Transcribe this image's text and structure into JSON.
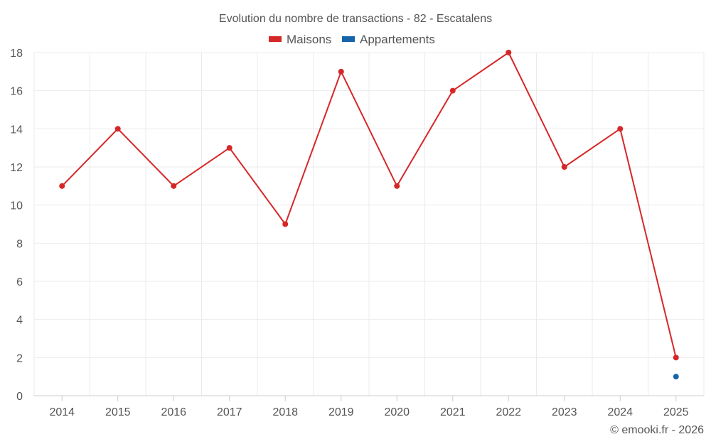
{
  "chart_data": {
    "type": "line",
    "title": "Evolution du nombre de transactions - 82 - Escatalens",
    "categories": [
      "2014",
      "2015",
      "2016",
      "2017",
      "2018",
      "2019",
      "2020",
      "2021",
      "2022",
      "2023",
      "2024",
      "2025"
    ],
    "series": [
      {
        "name": "Maisons",
        "color": "#d62728",
        "values": [
          11,
          14,
          11,
          13,
          9,
          17,
          11,
          16,
          18,
          12,
          14,
          2
        ]
      },
      {
        "name": "Appartements",
        "color": "#1565a8",
        "values": [
          null,
          null,
          null,
          null,
          null,
          null,
          null,
          null,
          null,
          null,
          null,
          1
        ]
      }
    ],
    "ylim": [
      0,
      18
    ],
    "yticks": [
      0,
      2,
      4,
      6,
      8,
      10,
      12,
      14,
      16,
      18
    ],
    "xlabel": "",
    "ylabel": "",
    "grid": true,
    "legend": "top-center"
  },
  "credit": "© emooki.fr - 2026"
}
